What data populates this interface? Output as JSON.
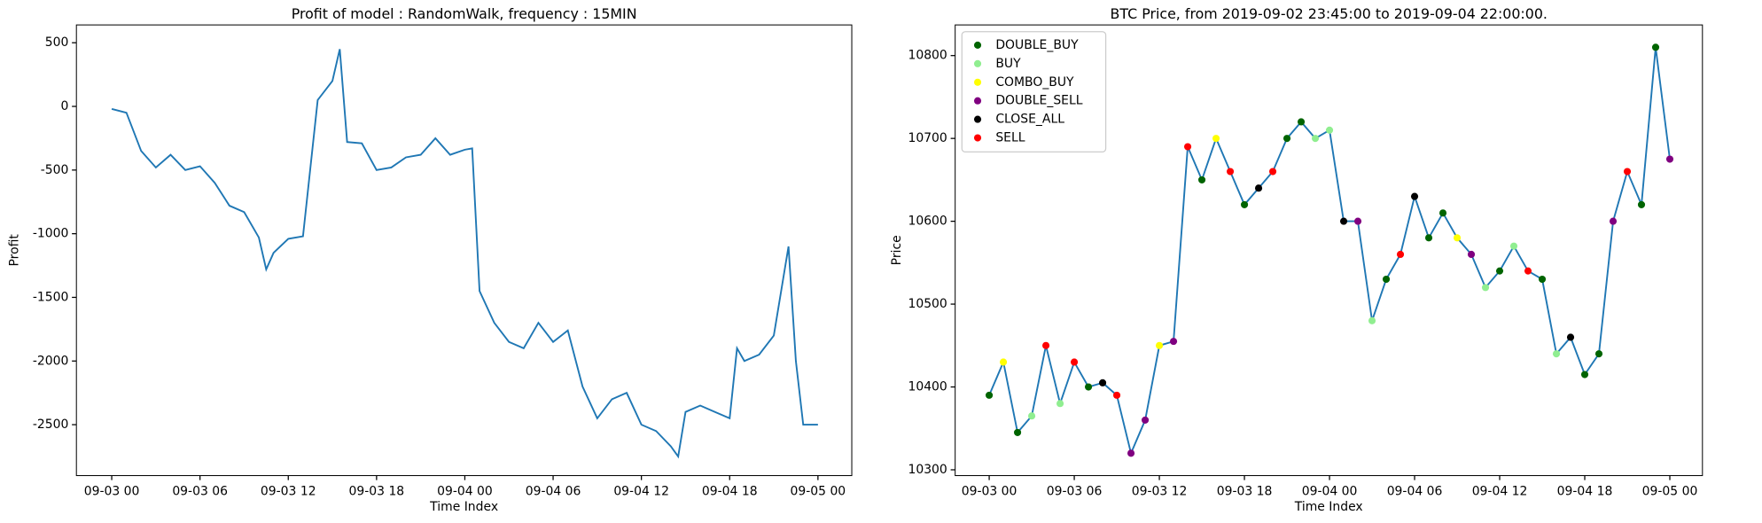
{
  "chart_data": [
    {
      "type": "line",
      "title": "Profit of model : RandomWalk, frequency : 15MIN",
      "xlabel": "Time Index",
      "ylabel": "Profit",
      "x": [
        0,
        1,
        2,
        3,
        4,
        5,
        6,
        7,
        8,
        9,
        10,
        10.5,
        11,
        12,
        13,
        14,
        15,
        15.5,
        16,
        17,
        18,
        19,
        20,
        21,
        22,
        23,
        24,
        24.5,
        25,
        26,
        27,
        28,
        29,
        30,
        31,
        32,
        33,
        34,
        35,
        36,
        37,
        38,
        38.5,
        39,
        40,
        41,
        42,
        42.5,
        43,
        44,
        45,
        46,
        46.5,
        47,
        48
      ],
      "values": [
        -20,
        -50,
        -350,
        -480,
        -380,
        -500,
        -470,
        -600,
        -780,
        -830,
        -1030,
        -1280,
        -1150,
        -1040,
        -1020,
        50,
        200,
        450,
        -280,
        -290,
        -500,
        -480,
        -400,
        -380,
        -250,
        -380,
        -340,
        -330,
        -1450,
        -1700,
        -1850,
        -1900,
        -1700,
        -1850,
        -1760,
        -2200,
        -2450,
        -2300,
        -2250,
        -2500,
        -2550,
        -2670,
        -2750,
        -2400,
        -2350,
        -2400,
        -2450,
        -1900,
        -2000,
        -1950,
        -1800,
        -1100,
        -2000,
        -2500,
        -2500
      ],
      "color": "#1f77b4",
      "xlim": [
        -2.4,
        50.3
      ],
      "ylim": [
        -2900,
        640
      ],
      "xticks": [
        {
          "value": 0,
          "label": "09-03 00"
        },
        {
          "value": 6,
          "label": "09-03 06"
        },
        {
          "value": 12,
          "label": "09-03 12"
        },
        {
          "value": 18,
          "label": "09-03 18"
        },
        {
          "value": 24,
          "label": "09-04 00"
        },
        {
          "value": 30,
          "label": "09-04 06"
        },
        {
          "value": 36,
          "label": "09-04 12"
        },
        {
          "value": 42,
          "label": "09-04 18"
        },
        {
          "value": 48,
          "label": "09-05 00"
        }
      ],
      "yticks": [
        500,
        0,
        -500,
        -1000,
        -1500,
        -2000,
        -2500
      ]
    },
    {
      "type": "line",
      "title": "BTC Price, from 2019-09-02 23:45:00 to 2019-09-04 22:00:00.",
      "xlabel": "Time Index",
      "ylabel": "Price",
      "x": [
        0,
        1,
        2,
        3,
        4,
        5,
        6,
        7,
        8,
        9,
        10,
        11,
        12,
        13,
        14,
        15,
        16,
        17,
        18,
        19,
        20,
        21,
        22,
        23,
        24,
        25,
        26,
        27,
        28,
        29,
        30,
        31,
        32,
        33,
        34,
        35,
        36,
        37,
        38,
        39,
        40,
        41,
        42,
        43,
        44,
        45,
        46,
        47,
        48
      ],
      "values": [
        10390,
        10430,
        10345,
        10365,
        10450,
        10380,
        10430,
        10400,
        10405,
        10390,
        10320,
        10360,
        10450,
        10455,
        10690,
        10650,
        10700,
        10660,
        10620,
        10640,
        10660,
        10700,
        10720,
        10700,
        10710,
        10600,
        10600,
        10480,
        10530,
        10560,
        10630,
        10580,
        10610,
        10580,
        10560,
        10520,
        10540,
        10570,
        10540,
        10530,
        10440,
        10460,
        10415,
        10440,
        10600,
        10660,
        10620,
        10810,
        10675
      ],
      "color": "#1f77b4",
      "legend": "upper left",
      "series": [
        {
          "name": "DOUBLE_BUY",
          "color": "#006400",
          "x": [
            0,
            2,
            7,
            15,
            18,
            21,
            22,
            28,
            31,
            32,
            36,
            39,
            42,
            43,
            46,
            47
          ],
          "values": [
            10390,
            10345,
            10400,
            10650,
            10620,
            10700,
            10720,
            10530,
            10580,
            10610,
            10540,
            10530,
            10415,
            10440,
            10620,
            10810
          ]
        },
        {
          "name": "BUY",
          "color": "#90ee90",
          "x": [
            3,
            5,
            23,
            24,
            27,
            35,
            37,
            40
          ],
          "values": [
            10365,
            10380,
            10700,
            10710,
            10480,
            10520,
            10570,
            10440
          ]
        },
        {
          "name": "COMBO_BUY",
          "color": "#ffff00",
          "x": [
            1,
            12,
            16,
            33
          ],
          "values": [
            10430,
            10450,
            10700,
            10580
          ]
        },
        {
          "name": "DOUBLE_SELL",
          "color": "#800080",
          "x": [
            10,
            11,
            13,
            26,
            34,
            44,
            48
          ],
          "values": [
            10320,
            10360,
            10455,
            10600,
            10560,
            10600,
            10675
          ]
        },
        {
          "name": "CLOSE_ALL",
          "color": "#000000",
          "x": [
            8,
            19,
            25,
            30,
            41
          ],
          "values": [
            10405,
            10640,
            10600,
            10630,
            10460
          ]
        },
        {
          "name": "SELL",
          "color": "#ff0000",
          "x": [
            4,
            6,
            9,
            14,
            17,
            20,
            29,
            38,
            45
          ],
          "values": [
            10450,
            10430,
            10390,
            10690,
            10660,
            10660,
            10560,
            10540,
            10660
          ]
        }
      ],
      "xlim": [
        -2.4,
        50.3
      ],
      "ylim": [
        10293,
        10837
      ],
      "xticks": [
        {
          "value": 0,
          "label": "09-03 00"
        },
        {
          "value": 6,
          "label": "09-03 06"
        },
        {
          "value": 12,
          "label": "09-03 12"
        },
        {
          "value": 18,
          "label": "09-03 18"
        },
        {
          "value": 24,
          "label": "09-04 00"
        },
        {
          "value": 30,
          "label": "09-04 06"
        },
        {
          "value": 36,
          "label": "09-04 12"
        },
        {
          "value": 42,
          "label": "09-04 18"
        },
        {
          "value": 48,
          "label": "09-05 00"
        }
      ],
      "yticks": [
        10300,
        10400,
        10500,
        10600,
        10700,
        10800
      ]
    }
  ]
}
